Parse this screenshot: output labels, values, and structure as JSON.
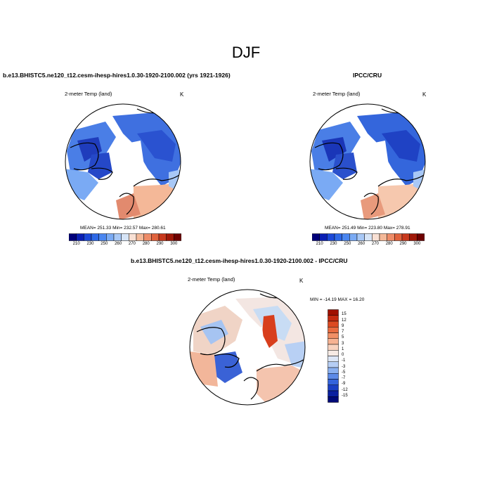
{
  "title": "DJF",
  "panels": [
    {
      "title": "b.e13.BHISTC5.ne120_t12.cesm-ihesp-hires1.0.30-1920-2100.002 (yrs 1921-1926)",
      "var_label": "2-meter Temp (land)",
      "unit": "K",
      "stats": "MEAN= 251.33  Min= 232.57  Max= 280.61"
    },
    {
      "title": "IPCC/CRU",
      "var_label": "2-meter Temp (land)",
      "unit": "K",
      "stats": "MEAN= 251.49  Min= 223.80  Max= 278.91"
    },
    {
      "title": "b.e13.BHISTC5.ne120_t12.cesm-ihesp-hires1.0.30-1920-2100.002 - IPCC/CRU",
      "var_label": "2-meter Temp (land)",
      "unit": "K",
      "stats": "MIN = -14.19 MAX =  16.20"
    }
  ],
  "colorbar_abs": {
    "labels": [
      "210",
      "230",
      "250",
      "260",
      "270",
      "280",
      "290",
      "300"
    ],
    "colors": [
      "#00007a",
      "#0a1fb4",
      "#1b48d8",
      "#2e68e6",
      "#4a86f0",
      "#7aaaf4",
      "#a8c8f6",
      "#d6e4f6",
      "#f8e0d4",
      "#f4b898",
      "#ee8c68",
      "#e0623c",
      "#c8381c",
      "#a01808",
      "#6e0000"
    ]
  },
  "colorbar_diff": {
    "labels": [
      "15",
      "12",
      "9",
      "7",
      "5",
      "3",
      "1",
      "0",
      "-1",
      "-3",
      "-5",
      "-7",
      "-9",
      "-12",
      "-15"
    ],
    "colors": [
      "#a01000",
      "#c42a10",
      "#dc4a22",
      "#ea6c40",
      "#f29066",
      "#f6b292",
      "#f8d2be",
      "#f6eae4",
      "#dce6f6",
      "#b6cef4",
      "#8ab0f0",
      "#5c8ae8",
      "#3464dc",
      "#1a40c4",
      "#0a20a0",
      "#000a78"
    ]
  }
}
